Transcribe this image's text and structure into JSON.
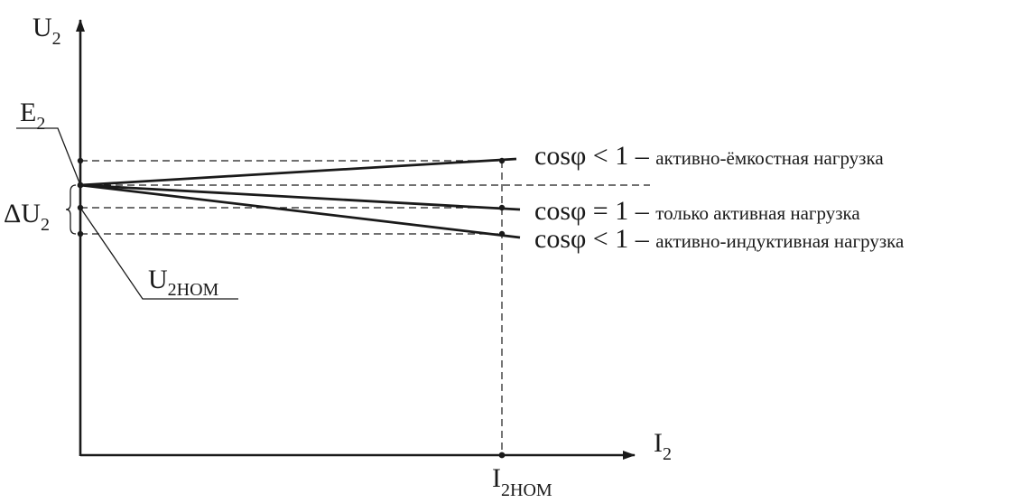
{
  "axes": {
    "y_label": "U",
    "y_label_sub": "2",
    "x_label": "I",
    "x_label_sub": "2"
  },
  "points": {
    "e2": "E",
    "e2_sub": "2",
    "delta_u2": "ΔU",
    "delta_u2_sub": "2",
    "u2nom": "U",
    "u2nom_sub": "2НОМ",
    "i2nom": "I",
    "i2nom_sub": "2НОМ"
  },
  "characteristics": [
    {
      "condition": "cosφ < 1",
      "dash": " – ",
      "description": "активно-ёмкостная нагрузка"
    },
    {
      "condition": "cosφ = 1",
      "dash": " – ",
      "description": "только активная нагрузка"
    },
    {
      "condition": "cosφ < 1",
      "dash": " – ",
      "description": "активно-индуктивная нагрузка"
    }
  ]
}
